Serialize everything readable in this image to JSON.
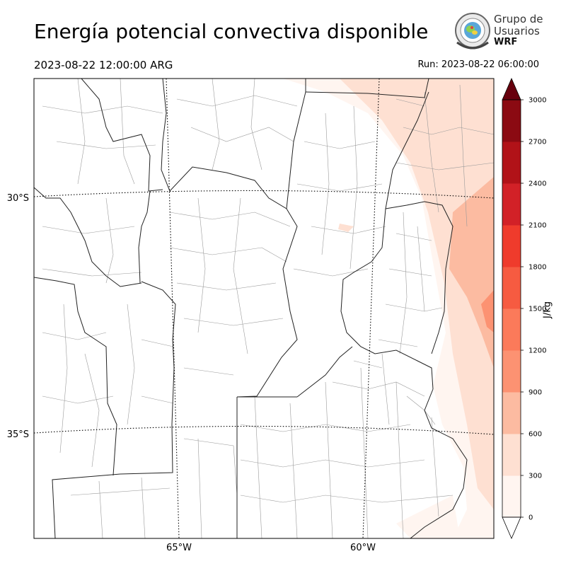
{
  "title": "Energía potencial convectiva disponible",
  "valid_time": "2023-08-22 12:00:00 ARG",
  "run_time": "Run: 2023-08-22 06:00:00",
  "logo": {
    "line1": "Grupo de",
    "line2": "Usuarios",
    "line3": "WRF",
    "icon": "wrf-group-seal-icon"
  },
  "map": {
    "lat_labels": [
      "30°S",
      "35°S"
    ],
    "lon_labels": [
      "65°W",
      "60°W"
    ]
  },
  "colorbar": {
    "label": "J/kg",
    "ticks": [
      "0",
      "300",
      "600",
      "900",
      "1200",
      "1500",
      "1800",
      "2100",
      "2400",
      "2700",
      "3000"
    ],
    "colors": [
      "#fff5f0",
      "#fee0d2",
      "#fcbba1",
      "#fc9272",
      "#fb7a5a",
      "#f65b41",
      "#ef3b2c",
      "#d22127",
      "#b11218",
      "#8b0a12"
    ],
    "extend_color": "#67000d",
    "extend": "both"
  }
}
